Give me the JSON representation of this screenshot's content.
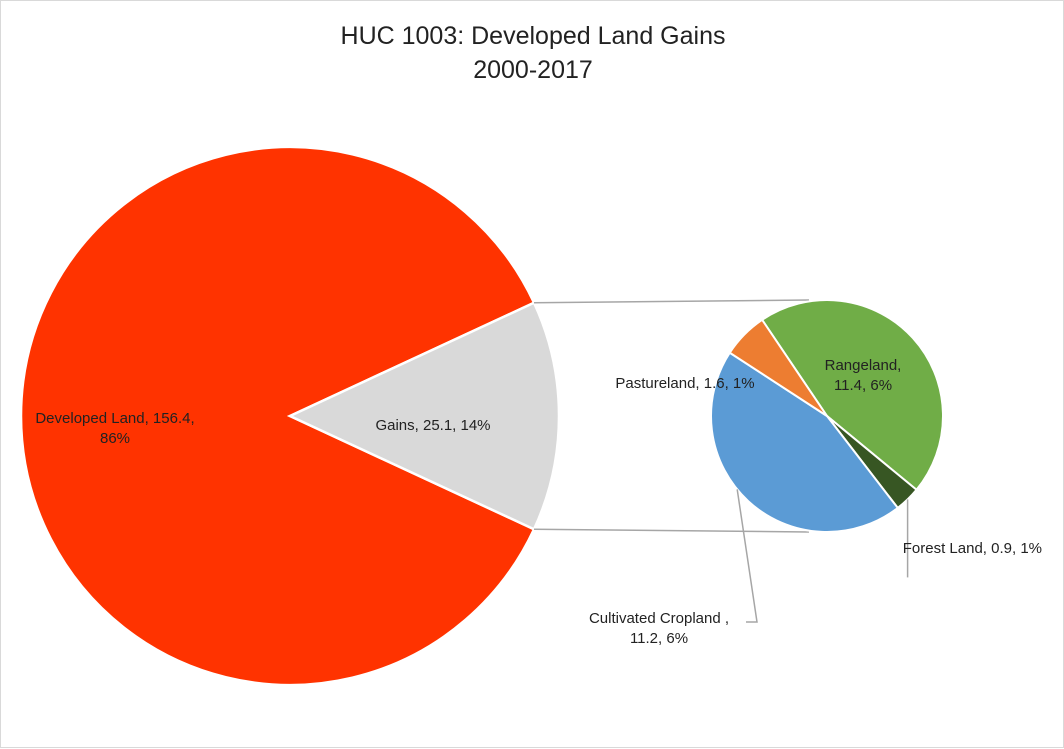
{
  "chart_data": {
    "type": "pie",
    "title_lines": [
      "HUC 1003: Developed Land Gains",
      "2000-2017"
    ],
    "main_pie": [
      {
        "name": "Developed Land",
        "value": 156.4,
        "percent": "86%",
        "color": "#ff3300",
        "label_lines": [
          "Developed Land, 156.4,",
          "86%"
        ]
      },
      {
        "name": "Gains",
        "value": 25.1,
        "percent": "14%",
        "color": "#d9d9d9",
        "label_lines": [
          "Gains, 25.1, 14%"
        ]
      }
    ],
    "secondary_pie": [
      {
        "name": "Rangeland",
        "value": 11.4,
        "percent": "6%",
        "color": "#70ad47",
        "label_lines": [
          "Rangeland,",
          "11.4, 6%"
        ]
      },
      {
        "name": "Forest Land",
        "value": 0.9,
        "percent": "1%",
        "color": "#375623",
        "label_lines": [
          "Forest Land, 0.9, 1%"
        ]
      },
      {
        "name": "Cultivated Cropland",
        "value": 11.2,
        "percent": "6%",
        "color": "#5b9bd5",
        "label_lines": [
          "Cultivated Cropland ,",
          "11.2, 6%"
        ]
      },
      {
        "name": "Pastureland",
        "value": 1.6,
        "percent": "1%",
        "color": "#ed7d31",
        "label_lines": [
          "Pastureland, 1.6, 1%"
        ]
      }
    ],
    "legend": "none"
  }
}
